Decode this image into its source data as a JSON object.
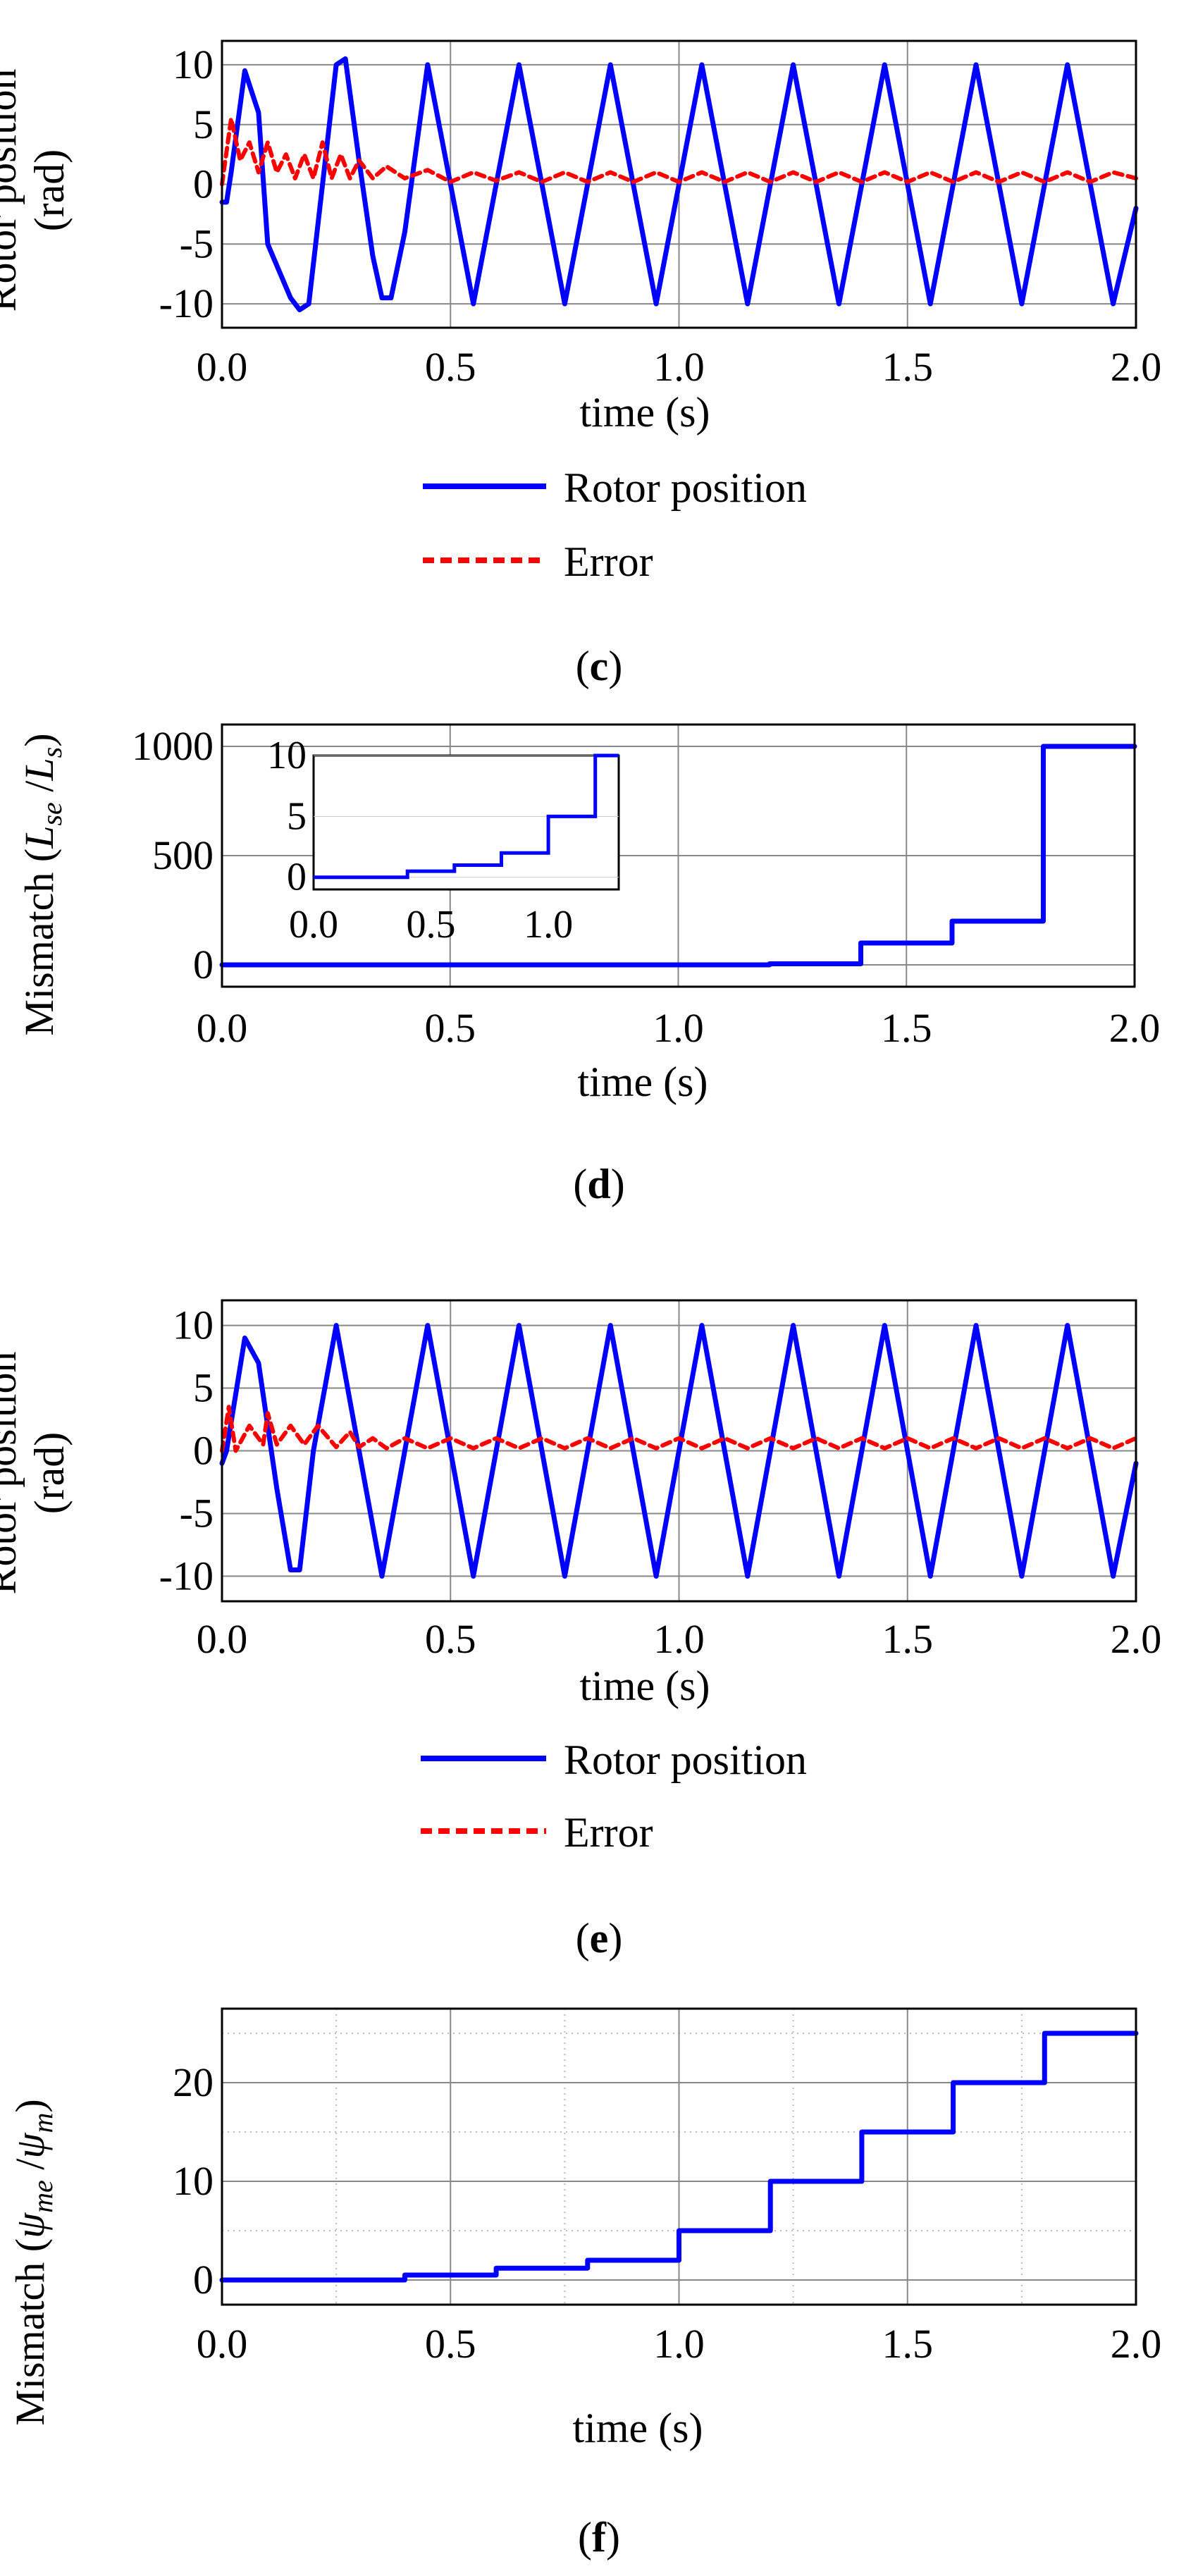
{
  "colors": {
    "blue": "#0000ff",
    "red": "#ff0000",
    "grid": "#888888",
    "minor": "#bbbbbb"
  },
  "chart_data": [
    {
      "id": "c",
      "type": "line",
      "caption_letter": "c",
      "xlabel": "time (s)",
      "ylabel_1": "Rotor position",
      "ylabel_2": "(rad)",
      "xlim": [
        0.0,
        2.0
      ],
      "ylim": [
        -12,
        12
      ],
      "xticks": [
        "0.0",
        "0.5",
        "1.0",
        "1.5",
        "2.0"
      ],
      "yticks": [
        "10",
        "5",
        "0",
        "-5",
        "-10"
      ],
      "series": [
        {
          "name": "Rotor position",
          "style": "solid",
          "color": "#0000ff",
          "x": [
            0.0,
            0.01,
            0.02,
            0.05,
            0.08,
            0.1,
            0.15,
            0.17,
            0.19,
            0.22,
            0.25,
            0.27,
            0.3,
            0.33,
            0.35,
            0.37,
            0.4,
            0.45,
            0.5,
            0.55,
            0.6,
            0.65,
            0.7,
            0.75,
            0.8,
            0.85,
            0.9,
            0.95,
            1.0,
            1.05,
            1.1,
            1.15,
            1.2,
            1.25,
            1.3,
            1.35,
            1.4,
            1.45,
            1.5,
            1.55,
            1.6,
            1.65,
            1.7,
            1.75,
            1.8,
            1.85,
            1.9,
            1.95,
            2.0
          ],
          "y": [
            -1.5,
            -1.5,
            1.0,
            9.5,
            6.0,
            -5.0,
            -9.5,
            -10.5,
            -10.0,
            0.0,
            10.0,
            10.5,
            2.0,
            -6.0,
            -9.5,
            -9.5,
            -4.0,
            10.0,
            0.0,
            -10.0,
            0.0,
            10.0,
            0.0,
            -10.0,
            0.0,
            10.0,
            0.0,
            -10.0,
            0.0,
            10.0,
            0.0,
            -10.0,
            0.0,
            10.0,
            0.0,
            -10.0,
            0.0,
            10.0,
            0.0,
            -10.0,
            0.0,
            10.0,
            0.0,
            -10.0,
            0.0,
            10.0,
            0.0,
            -10.0,
            -2.0
          ]
        },
        {
          "name": "Error",
          "style": "dashed",
          "color": "#ff0000",
          "x": [
            0.0,
            0.02,
            0.04,
            0.06,
            0.08,
            0.1,
            0.12,
            0.14,
            0.16,
            0.18,
            0.2,
            0.22,
            0.24,
            0.26,
            0.28,
            0.3,
            0.33,
            0.36,
            0.4,
            0.45,
            0.5,
            0.55,
            0.6,
            0.65,
            0.7,
            0.75,
            0.8,
            0.85,
            0.9,
            0.95,
            1.0,
            1.05,
            1.1,
            1.15,
            1.2,
            1.25,
            1.3,
            1.35,
            1.4,
            1.45,
            1.5,
            1.55,
            1.6,
            1.65,
            1.7,
            1.75,
            1.8,
            1.85,
            1.9,
            1.95,
            2.0
          ],
          "y": [
            0.0,
            5.5,
            2.0,
            3.5,
            1.0,
            3.5,
            1.0,
            2.5,
            0.5,
            2.5,
            0.5,
            3.5,
            0.5,
            2.5,
            0.5,
            2.0,
            0.5,
            1.5,
            0.5,
            1.2,
            0.2,
            1.0,
            0.3,
            1.0,
            0.2,
            1.0,
            0.2,
            1.0,
            0.2,
            1.0,
            0.2,
            1.0,
            0.2,
            1.0,
            0.2,
            1.0,
            0.2,
            1.0,
            0.2,
            1.0,
            0.2,
            1.0,
            0.2,
            1.0,
            0.2,
            1.0,
            0.2,
            1.0,
            0.2,
            1.0,
            0.5
          ]
        }
      ],
      "legend": [
        "Rotor position",
        "Error"
      ]
    },
    {
      "id": "d",
      "type": "line",
      "caption_letter": "d",
      "xlabel": "time (s)",
      "ylabel": {
        "pre": "Mismatch (",
        "a": "L",
        "a_sub": "se",
        "mid": " /",
        "b": "L",
        "b_sub": "s",
        "post": ")"
      },
      "xlim": [
        0.0,
        2.0
      ],
      "ylim": [
        -100,
        1100
      ],
      "xticks": [
        "0.0",
        "0.5",
        "1.0",
        "1.5",
        "2.0"
      ],
      "yticks": [
        "1000",
        "500",
        "0"
      ],
      "series": [
        {
          "name": "Mismatch",
          "style": "solid",
          "color": "#0000ff",
          "x": [
            0.0,
            1.2,
            1.2,
            1.4,
            1.4,
            1.6,
            1.6,
            1.8,
            1.8,
            2.0
          ],
          "y": [
            0,
            0,
            5,
            5,
            100,
            100,
            200,
            200,
            1000,
            1000
          ]
        }
      ],
      "inset": {
        "xlim": [
          0.0,
          1.3
        ],
        "ylim": [
          -1,
          10
        ],
        "xticks": [
          "0.0",
          "0.5",
          "1.0"
        ],
        "yticks": [
          "10",
          "5",
          "0"
        ],
        "x": [
          0.0,
          0.4,
          0.4,
          0.6,
          0.6,
          0.8,
          0.8,
          1.0,
          1.0,
          1.2,
          1.2,
          1.3
        ],
        "y": [
          0.0,
          0.0,
          0.5,
          0.5,
          1.0,
          1.0,
          2.0,
          2.0,
          5.0,
          5.0,
          10.0,
          10.0
        ]
      }
    },
    {
      "id": "e",
      "type": "line",
      "caption_letter": "e",
      "xlabel": "time (s)",
      "ylabel_1": "Rotor position",
      "ylabel_2": "(rad)",
      "xlim": [
        0.0,
        2.0
      ],
      "ylim": [
        -12,
        12
      ],
      "xticks": [
        "0.0",
        "0.5",
        "1.0",
        "1.5",
        "2.0"
      ],
      "yticks": [
        "10",
        "5",
        "0",
        "-5",
        "-10"
      ],
      "series": [
        {
          "name": "Rotor position",
          "style": "solid",
          "color": "#0000ff",
          "x": [
            0.0,
            0.01,
            0.05,
            0.08,
            0.12,
            0.15,
            0.17,
            0.2,
            0.25,
            0.3,
            0.35,
            0.4,
            0.45,
            0.5,
            0.55,
            0.6,
            0.65,
            0.7,
            0.75,
            0.8,
            0.85,
            0.9,
            0.95,
            1.0,
            1.05,
            1.1,
            1.15,
            1.2,
            1.25,
            1.3,
            1.35,
            1.4,
            1.45,
            1.5,
            1.55,
            1.6,
            1.65,
            1.7,
            1.75,
            1.8,
            1.85,
            1.9,
            1.95,
            2.0
          ],
          "y": [
            -1.0,
            0.0,
            9.0,
            7.0,
            -3.0,
            -9.5,
            -9.5,
            0.0,
            10.0,
            0.0,
            -10.0,
            0.0,
            10.0,
            0.0,
            -10.0,
            0.0,
            10.0,
            0.0,
            -10.0,
            0.0,
            10.0,
            0.0,
            -10.0,
            0.0,
            10.0,
            0.0,
            -10.0,
            0.0,
            10.0,
            0.0,
            -10.0,
            0.0,
            10.0,
            0.0,
            -10.0,
            0.0,
            10.0,
            0.0,
            -10.0,
            0.0,
            10.0,
            0.0,
            -10.0,
            -1.0
          ]
        },
        {
          "name": "Error",
          "style": "dashed",
          "color": "#ff0000",
          "x": [
            0.0,
            0.015,
            0.03,
            0.06,
            0.09,
            0.1,
            0.12,
            0.15,
            0.18,
            0.21,
            0.25,
            0.28,
            0.3,
            0.33,
            0.36,
            0.4,
            0.45,
            0.5,
            0.55,
            0.6,
            0.65,
            0.7,
            0.75,
            0.8,
            0.85,
            0.9,
            0.95,
            1.0,
            1.05,
            1.1,
            1.15,
            1.2,
            1.25,
            1.3,
            1.35,
            1.4,
            1.45,
            1.5,
            1.55,
            1.6,
            1.65,
            1.7,
            1.75,
            1.8,
            1.85,
            1.9,
            1.95,
            2.0
          ],
          "y": [
            0.0,
            3.5,
            0.0,
            2.0,
            0.5,
            3.0,
            0.5,
            2.0,
            0.5,
            2.0,
            0.3,
            1.5,
            0.3,
            1.0,
            0.2,
            1.0,
            0.2,
            1.0,
            0.2,
            1.0,
            0.2,
            1.0,
            0.2,
            1.0,
            0.2,
            1.0,
            0.2,
            1.0,
            0.2,
            1.0,
            0.2,
            1.0,
            0.2,
            1.0,
            0.2,
            1.0,
            0.2,
            1.0,
            0.2,
            1.0,
            0.2,
            1.0,
            0.2,
            1.0,
            0.2,
            1.0,
            0.2,
            1.0
          ]
        }
      ],
      "legend": [
        "Rotor position",
        "Error"
      ]
    },
    {
      "id": "f",
      "type": "line",
      "caption_letter": "f",
      "xlabel": "time (s)",
      "ylabel": {
        "pre": "Mismatch (",
        "a": "ψ",
        "a_sub": "me",
        "mid": " /",
        "b": "ψ",
        "b_sub": "m",
        "post": ")"
      },
      "xlim": [
        0.0,
        2.0
      ],
      "ylim": [
        -2.5,
        27.5
      ],
      "xticks": [
        "0.0",
        "0.5",
        "1.0",
        "1.5",
        "2.0"
      ],
      "yticks": [
        "20",
        "10",
        "0"
      ],
      "series": [
        {
          "name": "Mismatch",
          "style": "solid",
          "color": "#0000ff",
          "x": [
            0.0,
            0.4,
            0.4,
            0.6,
            0.6,
            0.8,
            0.8,
            1.0,
            1.0,
            1.2,
            1.2,
            1.4,
            1.4,
            1.6,
            1.6,
            1.8,
            1.8,
            2.0
          ],
          "y": [
            0,
            0,
            0.5,
            0.5,
            1.2,
            1.2,
            2,
            2,
            5,
            5,
            10,
            10,
            15,
            15,
            20,
            20,
            25,
            25
          ]
        }
      ]
    }
  ]
}
